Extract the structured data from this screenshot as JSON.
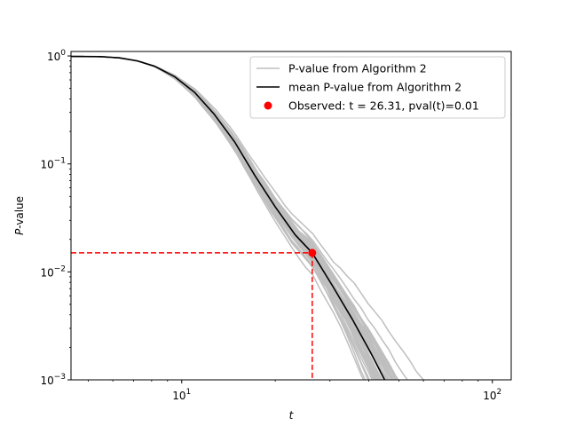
{
  "chart_data": {
    "type": "line",
    "xscale": "log",
    "yscale": "log",
    "xlim": [
      4.4,
      115
    ],
    "ylim": [
      0.001,
      1.1
    ],
    "xlabel": "t",
    "ylabel": "P-value",
    "xticks": [
      {
        "value": 10,
        "base": "10",
        "exp": "1"
      },
      {
        "value": 100,
        "base": "10",
        "exp": "2"
      }
    ],
    "yticks": [
      {
        "value": 1,
        "base": "10",
        "exp": "0"
      },
      {
        "value": 0.1,
        "base": "10",
        "exp": "−1"
      },
      {
        "value": 0.01,
        "base": "10",
        "exp": "−2"
      },
      {
        "value": 0.001,
        "base": "10",
        "exp": "−3"
      }
    ],
    "grid": false,
    "legend_position": "upper right",
    "legend": [
      {
        "label": "P-value from Algorithm 2",
        "kind": "line",
        "color": "#bfbfbf"
      },
      {
        "label": "mean P-value from Algorithm 2",
        "kind": "line",
        "color": "#000000"
      },
      {
        "label": "Observed: t = 26.31, pval(t)=0.01",
        "kind": "marker",
        "color": "#ff0000"
      }
    ],
    "mean_series": {
      "name": "mean P-value from Algorithm 2",
      "color": "#000000",
      "x": [
        4.4,
        5.5,
        6.3,
        7.2,
        8.2,
        9.5,
        11.0,
        12.7,
        14.8,
        17.2,
        20.0,
        23.2,
        26.31,
        30.5,
        35.5,
        40.5,
        45.0
      ],
      "y": [
        0.99,
        0.985,
        0.96,
        0.9,
        0.8,
        0.64,
        0.46,
        0.29,
        0.16,
        0.078,
        0.04,
        0.022,
        0.015,
        0.0075,
        0.0036,
        0.0018,
        0.001
      ]
    },
    "sim_series_color": "#bfbfbf",
    "sim_series_count": 55,
    "observed": {
      "t": 26.31,
      "pval": 0.015,
      "color": "#ff0000"
    }
  }
}
